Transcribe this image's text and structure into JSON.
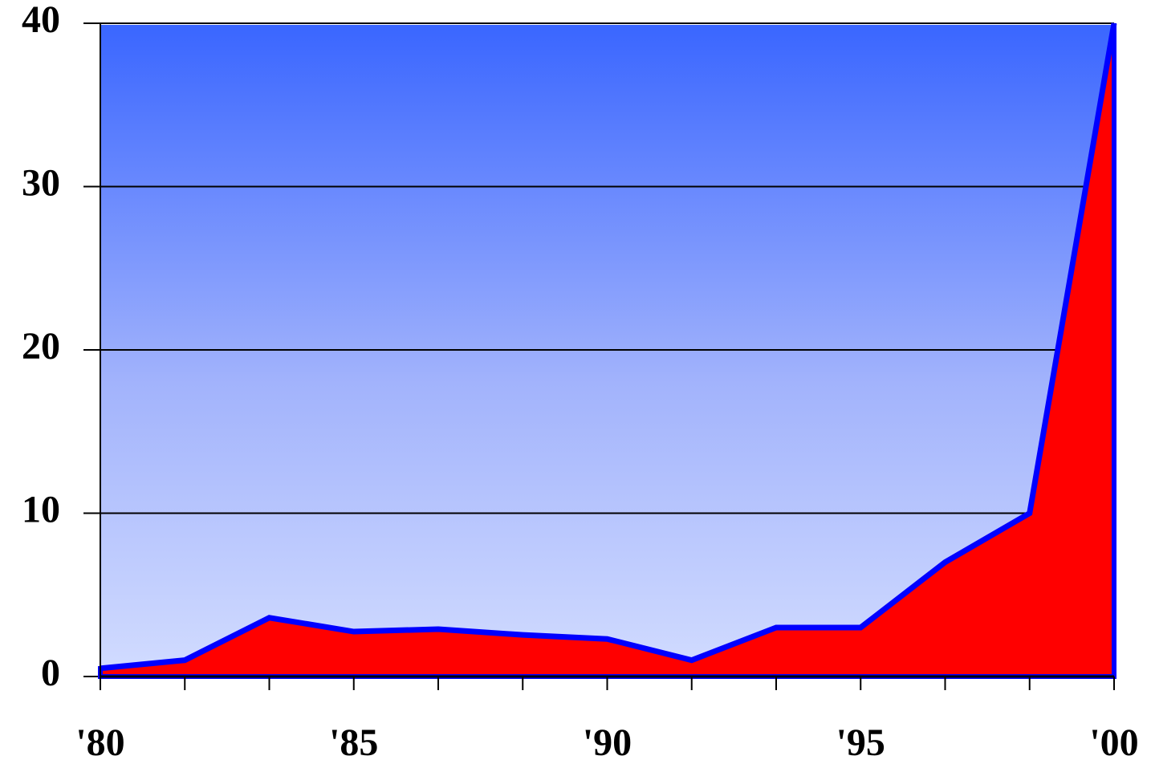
{
  "chart_data": {
    "type": "area",
    "categories": [
      "'80",
      null,
      null,
      "'85",
      null,
      null,
      "'90",
      null,
      null,
      "'95",
      null,
      null,
      "'00"
    ],
    "values": [
      0.5,
      1.0,
      3.6,
      2.75,
      2.9,
      2.55,
      2.3,
      1.0,
      3.0,
      3.0,
      7.0,
      10,
      40
    ],
    "color": "#ff0000",
    "line_color": "#0000ff",
    "ylim": [
      0,
      40
    ],
    "yticks": [
      0,
      10,
      20,
      30,
      40
    ],
    "grid": true
  }
}
